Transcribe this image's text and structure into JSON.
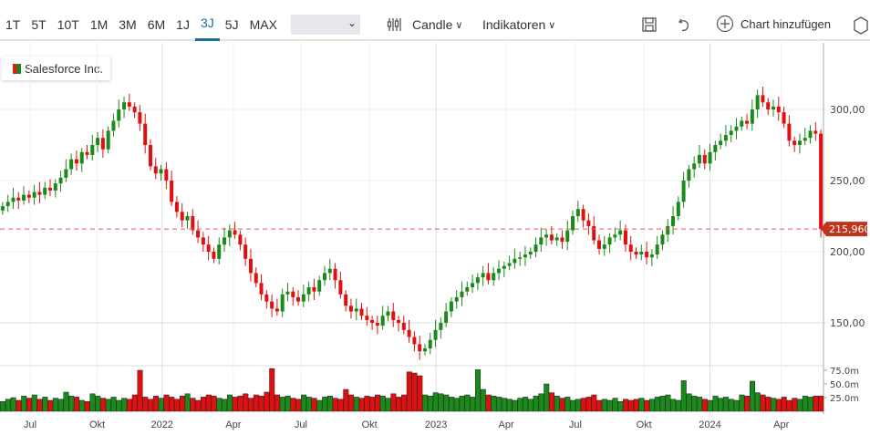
{
  "toolbar": {
    "ranges": [
      "1T",
      "5T",
      "10T",
      "1M",
      "3M",
      "6M",
      "1J",
      "3J",
      "5J",
      "MAX"
    ],
    "active_range": "3J",
    "select_value": "",
    "chart_type": "Candle",
    "indicators": "Indikatoren",
    "add_chart": "Chart hinzufügen"
  },
  "legend": {
    "name": "Salesforce Inc."
  },
  "colors": {
    "up": "#1a8a1a",
    "down": "#e01010",
    "last": "#c0341d"
  },
  "chart_data": {
    "type": "candlestick",
    "title": "Salesforce Inc.",
    "last_price": 215.96,
    "last_label": "215,960",
    "ylim": [
      118,
      323
    ],
    "y_ticks": [
      {
        "v": 150,
        "label": "150,00"
      },
      {
        "v": 200,
        "label": "200,00"
      },
      {
        "v": 250,
        "label": "250,00"
      },
      {
        "v": 300,
        "label": "300,00"
      }
    ],
    "vol_ticks": [
      {
        "v": 25,
        "label": "25.0m"
      },
      {
        "v": 50,
        "label": "50.0m"
      },
      {
        "v": 75,
        "label": "75.0m"
      }
    ],
    "x_ticks": [
      {
        "i": 5.7,
        "label": "Jul"
      },
      {
        "i": 18.4,
        "label": "Okt"
      },
      {
        "i": 30.7,
        "label": "2022"
      },
      {
        "i": 44.2,
        "label": "Apr"
      },
      {
        "i": 57,
        "label": "Jul"
      },
      {
        "i": 70,
        "label": "Okt"
      },
      {
        "i": 82.6,
        "label": "2023"
      },
      {
        "i": 95.9,
        "label": "Apr"
      },
      {
        "i": 109,
        "label": "Jul"
      },
      {
        "i": 122,
        "label": "Okt"
      },
      {
        "i": 134.5,
        "label": "2024"
      },
      {
        "i": 148,
        "label": "Apr"
      }
    ],
    "closes": [
      232,
      235,
      238,
      236,
      240,
      238,
      242,
      240,
      245,
      243,
      248,
      252,
      258,
      265,
      262,
      270,
      268,
      275,
      280,
      272,
      285,
      292,
      300,
      305,
      302,
      298,
      290,
      275,
      260,
      255,
      258,
      250,
      235,
      228,
      222,
      225,
      215,
      210,
      205,
      200,
      195,
      205,
      210,
      215,
      212,
      205,
      195,
      185,
      178,
      170,
      165,
      160,
      158,
      170,
      172,
      168,
      165,
      170,
      175,
      172,
      180,
      185,
      188,
      180,
      170,
      162,
      158,
      160,
      155,
      152,
      150,
      148,
      155,
      158,
      152,
      150,
      145,
      140,
      135,
      130,
      132,
      138,
      145,
      150,
      158,
      165,
      168,
      172,
      175,
      178,
      182,
      185,
      180,
      185,
      188,
      190,
      192,
      195,
      196,
      198,
      200,
      205,
      210,
      212,
      208,
      210,
      207,
      215,
      225,
      230,
      222,
      218,
      208,
      202,
      205,
      210,
      212,
      215,
      205,
      200,
      198,
      200,
      196,
      198,
      205,
      212,
      218,
      225,
      235,
      250,
      258,
      262,
      268,
      262,
      270,
      275,
      278,
      282,
      285,
      288,
      292,
      290,
      300,
      310,
      305,
      300,
      302,
      298,
      290,
      278,
      275,
      278,
      280,
      285,
      283,
      216
    ],
    "volumes_m": [
      18,
      22,
      25,
      20,
      28,
      24,
      30,
      22,
      26,
      20,
      24,
      22,
      35,
      28,
      26,
      20,
      18,
      32,
      28,
      24,
      22,
      26,
      20,
      24,
      22,
      30,
      75,
      26,
      22,
      28,
      24,
      30,
      26,
      22,
      28,
      32,
      24,
      20,
      26,
      30,
      28,
      24,
      22,
      30,
      26,
      28,
      32,
      24,
      30,
      28,
      35,
      78,
      30,
      26,
      28,
      24,
      22,
      30,
      26,
      24,
      20,
      26,
      28,
      24,
      22,
      40,
      30,
      26,
      24,
      28,
      26,
      30,
      28,
      24,
      32,
      26,
      30,
      72,
      70,
      65,
      30,
      28,
      34,
      32,
      30,
      26,
      24,
      28,
      30,
      26,
      76,
      40,
      30,
      28,
      26,
      24,
      22,
      20,
      24,
      26,
      22,
      28,
      32,
      50,
      34,
      28,
      24,
      26,
      20,
      22,
      24,
      26,
      30,
      20,
      22,
      20,
      24,
      18,
      22,
      20,
      22,
      24,
      20,
      22,
      26,
      28,
      30,
      22,
      20,
      56,
      32,
      28,
      26,
      22,
      20,
      28,
      24,
      26,
      22,
      20,
      30,
      28,
      55,
      34,
      30,
      26,
      24,
      22,
      26,
      20,
      24,
      22,
      28,
      26,
      28,
      28
    ]
  }
}
